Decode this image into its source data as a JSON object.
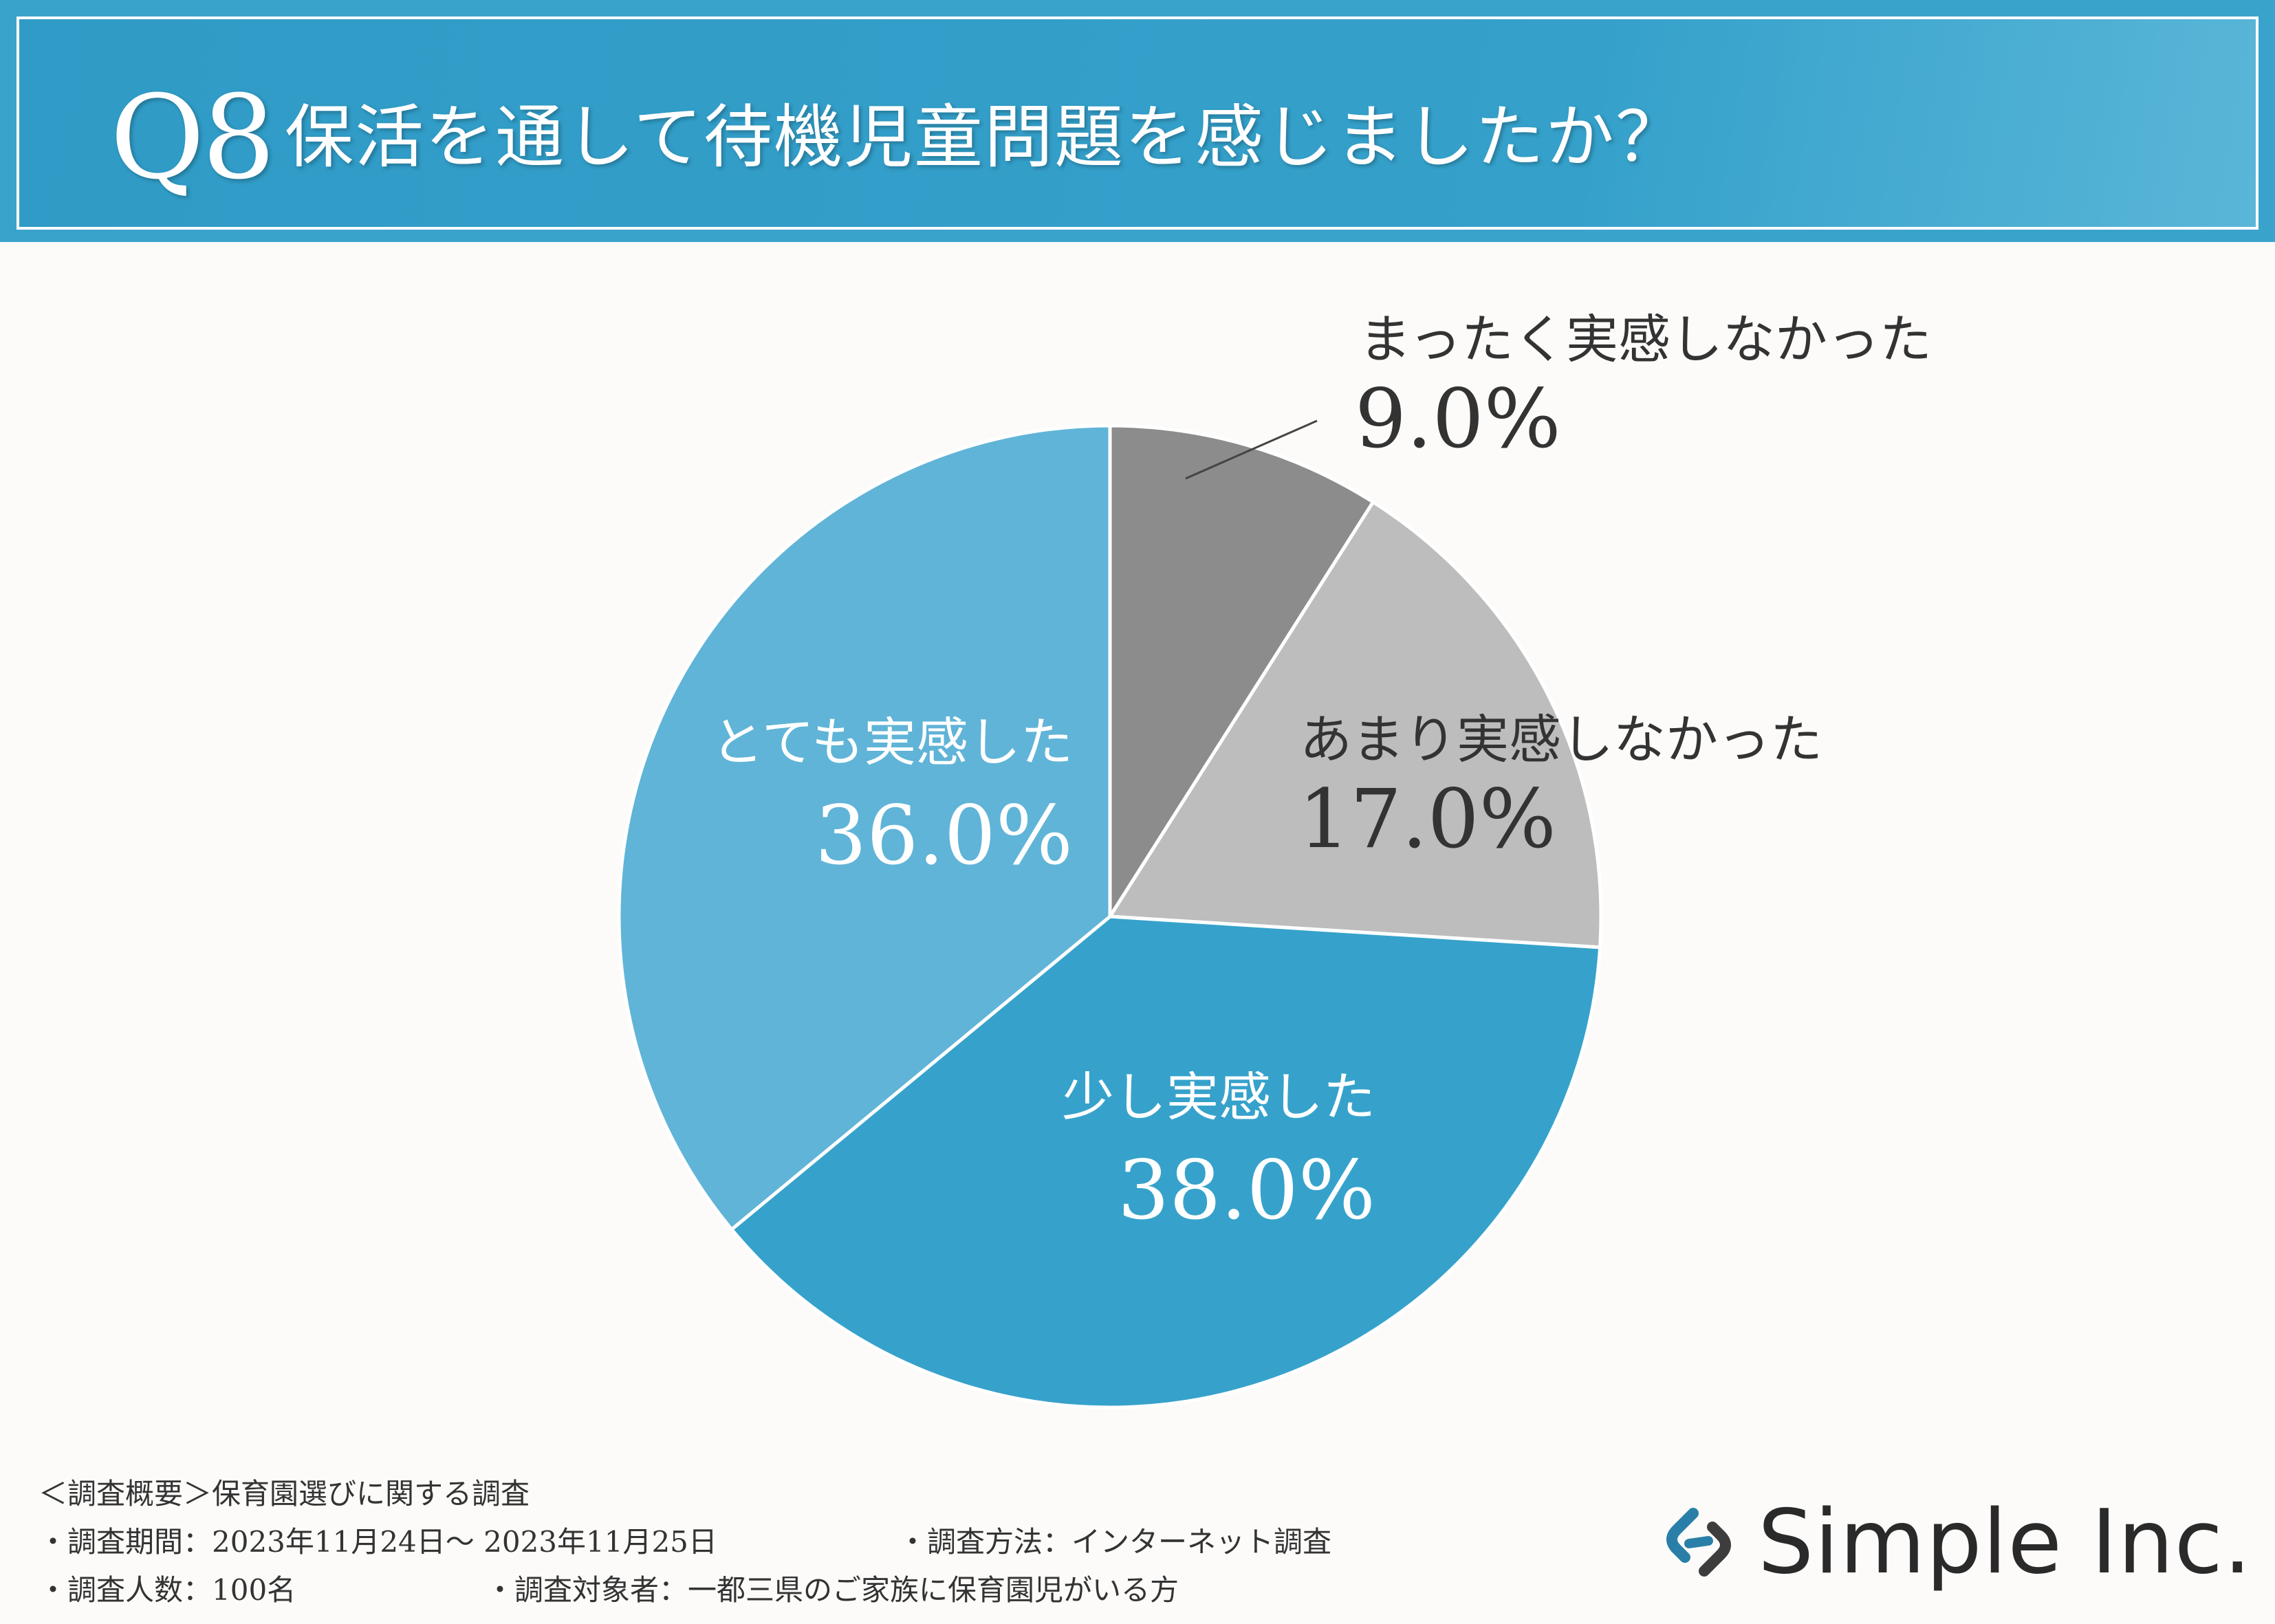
{
  "header": {
    "question_number": "Q8",
    "question_text": "保活を通して待機児童問題を感じましたか？"
  },
  "chart_data": {
    "type": "pie",
    "title": "保活を通して待機児童問題を感じましたか？",
    "start": "12 o'clock, clockwise",
    "slices": [
      {
        "label": "まったく実感しなかった",
        "value": 9.0,
        "display": "9.0%",
        "color": "#8c8c8c"
      },
      {
        "label": "あまり実感しなかった",
        "value": 17.0,
        "display": "17.0%",
        "color": "#bdbdbd"
      },
      {
        "label": "少し実感した",
        "value": 38.0,
        "display": "38.0%",
        "color": "#36a2cb"
      },
      {
        "label": "とても実感した",
        "value": 36.0,
        "display": "36.0%",
        "color": "#60b4d7"
      }
    ]
  },
  "footer": {
    "survey_title": "＜調査概要＞保育園選びに関する調査",
    "period": "・調査期間：2023年11月24日～ 2023年11月25日",
    "method": "・調査方法：インターネット調査",
    "respondents": "・調査人数：100名",
    "target": "・調査対象者：一都三県のご家族に保育園児がいる方"
  },
  "logo": {
    "text": "Simple Inc.",
    "icon": "chain-link-logo-icon",
    "color": "#2a7fa8"
  }
}
